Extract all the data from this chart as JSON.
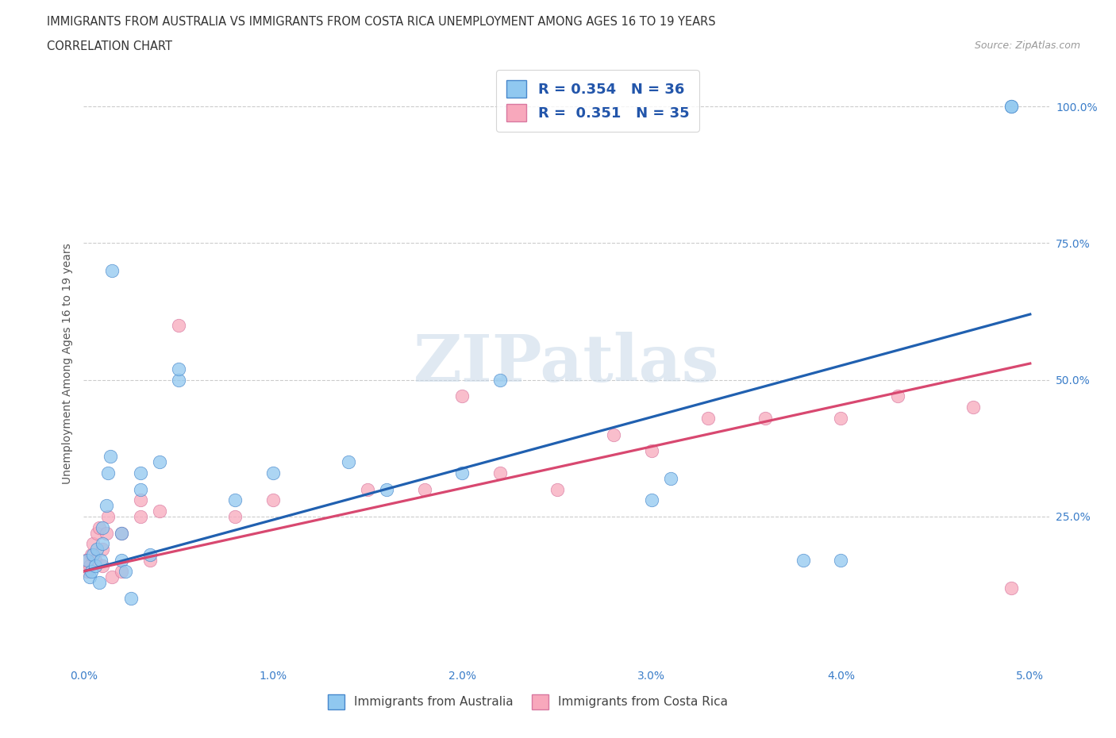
{
  "title_line1": "IMMIGRANTS FROM AUSTRALIA VS IMMIGRANTS FROM COSTA RICA UNEMPLOYMENT AMONG AGES 16 TO 19 YEARS",
  "title_line2": "CORRELATION CHART",
  "source_text": "Source: ZipAtlas.com",
  "ylabel": "Unemployment Among Ages 16 to 19 years",
  "xlim": [
    0.0,
    0.051
  ],
  "ylim": [
    -0.02,
    1.08
  ],
  "xticks": [
    0.0,
    0.01,
    0.02,
    0.03,
    0.04,
    0.05
  ],
  "xtick_labels": [
    "0.0%",
    "1.0%",
    "2.0%",
    "3.0%",
    "4.0%",
    "5.0%"
  ],
  "ytick_labels": [
    "25.0%",
    "50.0%",
    "75.0%",
    "100.0%"
  ],
  "yticks": [
    0.25,
    0.5,
    0.75,
    1.0
  ],
  "color_australia": "#90C8F0",
  "color_costa_rica": "#F8A8BC",
  "color_line_australia": "#2060B0",
  "color_line_costa_rica": "#D84870",
  "R_australia": "0.354",
  "N_australia": "36",
  "R_costa_rica": "0.351",
  "N_costa_rica": "35",
  "legend_label_australia": "Immigrants from Australia",
  "legend_label_costa_rica": "Immigrants from Costa Rica",
  "watermark": "ZIPatlas",
  "australia_x": [
    0.0002,
    0.0003,
    0.0004,
    0.0005,
    0.0006,
    0.0007,
    0.0008,
    0.0009,
    0.001,
    0.001,
    0.0012,
    0.0013,
    0.0014,
    0.0015,
    0.002,
    0.002,
    0.0022,
    0.0025,
    0.003,
    0.003,
    0.0035,
    0.004,
    0.005,
    0.005,
    0.008,
    0.01,
    0.014,
    0.016,
    0.02,
    0.022,
    0.03,
    0.031,
    0.038,
    0.04,
    0.049,
    0.049
  ],
  "australia_y": [
    0.17,
    0.14,
    0.15,
    0.18,
    0.16,
    0.19,
    0.13,
    0.17,
    0.2,
    0.23,
    0.27,
    0.33,
    0.36,
    0.7,
    0.17,
    0.22,
    0.15,
    0.1,
    0.3,
    0.33,
    0.18,
    0.35,
    0.5,
    0.52,
    0.28,
    0.33,
    0.35,
    0.3,
    0.33,
    0.5,
    0.28,
    0.32,
    0.17,
    0.17,
    1.0,
    1.0
  ],
  "costa_rica_x": [
    0.0001,
    0.0002,
    0.0003,
    0.0004,
    0.0005,
    0.0006,
    0.0007,
    0.0008,
    0.001,
    0.001,
    0.0012,
    0.0013,
    0.0015,
    0.002,
    0.002,
    0.003,
    0.003,
    0.0035,
    0.004,
    0.005,
    0.008,
    0.01,
    0.015,
    0.018,
    0.02,
    0.022,
    0.025,
    0.028,
    0.03,
    0.033,
    0.036,
    0.04,
    0.043,
    0.047,
    0.049
  ],
  "costa_rica_y": [
    0.17,
    0.15,
    0.16,
    0.18,
    0.2,
    0.17,
    0.22,
    0.23,
    0.16,
    0.19,
    0.22,
    0.25,
    0.14,
    0.15,
    0.22,
    0.25,
    0.28,
    0.17,
    0.26,
    0.6,
    0.25,
    0.28,
    0.3,
    0.3,
    0.47,
    0.33,
    0.3,
    0.4,
    0.37,
    0.43,
    0.43,
    0.43,
    0.47,
    0.45,
    0.12
  ],
  "line_au_x0": 0.0,
  "line_au_y0": 0.15,
  "line_au_x1": 0.05,
  "line_au_y1": 0.62,
  "line_cr_x0": 0.0,
  "line_cr_y0": 0.15,
  "line_cr_x1": 0.05,
  "line_cr_y1": 0.53
}
